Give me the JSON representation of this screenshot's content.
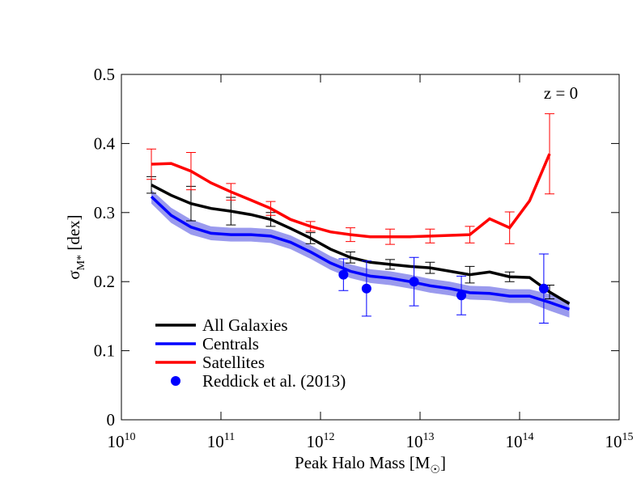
{
  "chart_data": {
    "type": "line",
    "xlabel": "Peak Halo Mass [M_{☉}]",
    "ylabel": "σ_{M*} [dex]",
    "annotation": "z = 0",
    "xscale": "log",
    "xlim": [
      10000000000.0,
      1000000000000000.0
    ],
    "xticks": [
      {
        "value": 10000000000.0,
        "label": "10^10"
      },
      {
        "value": 100000000000.0,
        "label": "10^11"
      },
      {
        "value": 1000000000000.0,
        "label": "10^12"
      },
      {
        "value": 10000000000000.0,
        "label": "10^13"
      },
      {
        "value": 100000000000000.0,
        "label": "10^14"
      },
      {
        "value": 1000000000000000.0,
        "label": "10^15"
      }
    ],
    "ylim": [
      0,
      0.5
    ],
    "yticks": [
      0,
      0.1,
      0.2,
      0.3,
      0.4,
      0.5
    ],
    "legend": "lower left",
    "x": [
      20000000000.0,
      31600000000.0,
      50000000000.0,
      79400000000.0,
      126000000000.0,
      200000000000.0,
      316000000000.0,
      500000000000.0,
      794000000000.0,
      1260000000000.0,
      2000000000000.0,
      3160000000000.0,
      5000000000000.0,
      7940000000000.0,
      12600000000000.0,
      20000000000000.0,
      31600000000000.0,
      50000000000000.0,
      79400000000000.0,
      126000000000000.0,
      200000000000000.0,
      316000000000000.0
    ],
    "series": [
      {
        "name": "All Galaxies",
        "color": "#000000",
        "values": [
          0.34,
          0.325,
          0.313,
          0.306,
          0.302,
          0.297,
          0.29,
          0.277,
          0.263,
          0.247,
          0.235,
          0.228,
          0.225,
          0.222,
          0.22,
          0.215,
          0.21,
          0.214,
          0.207,
          0.206,
          0.185,
          0.168
        ],
        "errors": [
          0.012,
          null,
          0.025,
          null,
          0.02,
          null,
          0.01,
          null,
          0.008,
          null,
          0.008,
          null,
          0.007,
          null,
          0.008,
          null,
          0.012,
          null,
          0.007,
          null,
          0.01,
          null
        ]
      },
      {
        "name": "Centrals",
        "color": "#0000ff",
        "band_color": "#9a9aee",
        "values": [
          0.323,
          0.296,
          0.279,
          0.27,
          0.268,
          0.268,
          0.266,
          0.257,
          0.243,
          0.227,
          0.215,
          0.208,
          0.205,
          0.2,
          0.194,
          0.19,
          0.184,
          0.183,
          0.179,
          0.179,
          0.17,
          0.16
        ],
        "band": [
          0.01,
          0.011,
          0.011,
          0.01,
          0.01,
          0.01,
          0.01,
          0.01,
          0.01,
          0.01,
          0.01,
          0.01,
          0.01,
          0.01,
          0.01,
          0.01,
          0.01,
          0.01,
          0.01,
          0.01,
          0.012,
          0.012
        ]
      },
      {
        "name": "Satellites",
        "color": "#ff0000",
        "values": [
          0.37,
          0.371,
          0.36,
          0.343,
          0.33,
          0.318,
          0.306,
          0.29,
          0.28,
          0.272,
          0.268,
          0.265,
          0.265,
          0.265,
          0.266,
          0.267,
          0.268,
          0.291,
          0.278,
          0.317,
          0.385,
          null
        ],
        "errors": [
          0.022,
          null,
          0.027,
          null,
          0.012,
          null,
          0.01,
          null,
          0.007,
          null,
          0.01,
          null,
          0.011,
          null,
          0.01,
          null,
          0.012,
          null,
          0.023,
          null,
          0.058,
          null
        ]
      }
    ],
    "points": {
      "name": "Reddick et al. (2013)",
      "color": "#0000ff",
      "x": [
        1700000000000.0,
        2900000000000.0,
        8700000000000.0,
        26000000000000.0,
        175000000000000.0
      ],
      "values": [
        0.21,
        0.19,
        0.2,
        0.18,
        0.19
      ],
      "errors": [
        0.023,
        0.04,
        0.035,
        0.028,
        0.05
      ]
    }
  }
}
